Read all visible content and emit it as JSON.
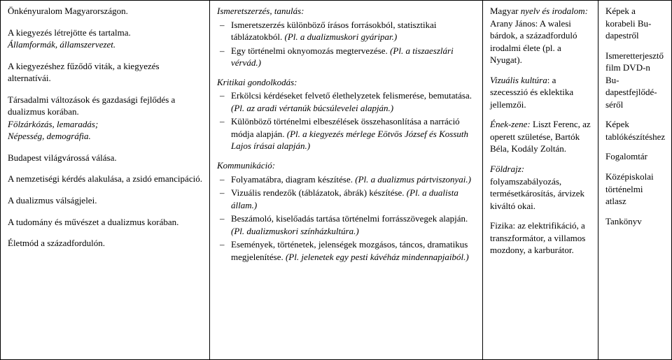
{
  "col1": {
    "p1": "Önkényuralom Magyarországon.",
    "p2a": "A kiegyezés létrejötte és tartalma.",
    "p2b": "Államformák, államszervezet.",
    "p3": "A kiegyezéshez fűződő viták, a kiegyezés alternatívái.",
    "p4a": "Társadalmi változások és gazdasági fejlődés a dualizmus korában.",
    "p4b": "Fölzárkózás, lemaradás;",
    "p4c": "Népesség, demográfia.",
    "p5": "Budapest világvárossá válása.",
    "p6": "A nemzetiségi kérdés alakulása, a zsidó emancipáció.",
    "p7": "A dualizmus válságjelei.",
    "p8": "A tudomány és művészet a dualizmus korában.",
    "p9": "Életmód a századfordulón."
  },
  "col2": {
    "h1": "Ismeretszerzés, tanulás:",
    "l1a_a": "Ismeretszerzés különböző írásos forrásokból, statisztikai táblázatokból. ",
    "l1a_b": "(Pl. a dualizmuskori gyáripar.)",
    "l1b_a": "Egy történelmi oknyomozás megtervezése. ",
    "l1b_b": "(Pl. a tiszaeszlári vérvád.)",
    "h2": "Kritikai gondolkodás:",
    "l2a_a": "Erkölcsi kérdéseket felvető élethelyzetek felismerése, bemutatása. ",
    "l2a_b": "(Pl. az aradi vértanúk búcsúlevelei alapján.)",
    "l2b_a": "Különböző történelmi elbeszélések összehasonlítása a narráció módja alapján. ",
    "l2b_b": "(Pl. a kiegyezés mérlege Eötvös József és Kossuth Lajos írásai alapján.)",
    "h3": "Kommunikáció:",
    "l3a_a": "Folyamatábra, diagram készítése. ",
    "l3a_b": "(Pl. a dualizmus pártviszonyai.)",
    "l3b_a": "Vizuális rendezők (táblázatok, ábrák) készítése. ",
    "l3b_b": "(Pl. a dualista állam.)",
    "l3c_a": "Beszámoló, kiselőadás tartása történelmi forrásszövegek alapján. ",
    "l3c_b": "(Pl. dualizmuskori színházkultúra.)",
    "l3d_a": "Események, történetek, jelenségek mozgásos, táncos, dramatikus megjelenítése. ",
    "l3d_b": "(Pl. jelenetek egy pesti kávéház mindennapjaiból.)"
  },
  "col3": {
    "p1_a": "Magyar ",
    "p1_b": "nyelv és irodalom: ",
    "p1_c": "Arany János: A walesi bárdok, a századforduló irodalmi élete (pl. a Nyugat).",
    "p2_a": "Vizuális kultúra",
    "p2_b": ": a szecesszió és eklektika jellemzői.",
    "p3_a": "Ének-zene: ",
    "p3_b": "Liszt Ferenc, az operett születése, Bartók Béla, Kodály Zoltán.",
    "p4_a": "Földrajz:",
    "p4_b": " folyamszabályozás, termésetkárosítás, árvizek kiváltó okai.",
    "p5_a": "Fizika: ",
    "p5_b": "az elektrifikáció, a transzformátor, a villamos mozdony, a karburátor."
  },
  "col4": {
    "p1": "Képek a korabeli Bu-dapestről",
    "p2": "Ismeretterjesztő film DVD-n Bu-dapestfejlődé-séről",
    "p3": "Képek tablókészítéshez",
    "p4": "Fogalomtár",
    "p5": "Középiskolai történelmi atlasz",
    "p6": "Tankönyv"
  }
}
